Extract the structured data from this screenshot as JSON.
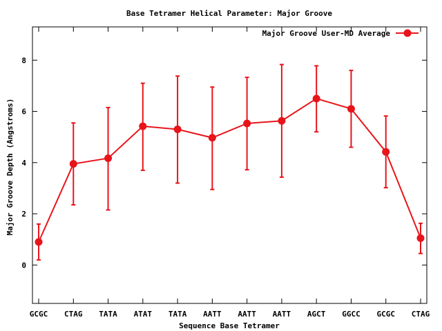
{
  "chart_data": {
    "type": "line",
    "title": "Base Tetramer Helical Parameter: Major Groove",
    "xlabel": "Sequence Base Tetramer",
    "ylabel": "Major Groove Depth (Angstroms)",
    "categories": [
      "GCGC",
      "CTAG",
      "TATA",
      "ATAT",
      "TATA",
      "AATT",
      "AATT",
      "AATT",
      "AGCT",
      "GGCC",
      "GCGC",
      "CTAG"
    ],
    "ylim": [
      -1.5,
      9.3
    ],
    "yticks": [
      0,
      2,
      4,
      6,
      8
    ],
    "grid": false,
    "legend_position": "top-right",
    "series": [
      {
        "name": "Major Groove User-MD Average",
        "color": "#e8141a",
        "marker": "circle",
        "values": [
          0.9,
          3.95,
          4.17,
          5.42,
          5.3,
          4.97,
          5.53,
          5.63,
          6.5,
          6.1,
          4.42,
          1.05
        ],
        "err_low": [
          0.2,
          2.35,
          2.15,
          3.7,
          3.2,
          2.95,
          3.72,
          3.43,
          5.2,
          4.6,
          3.02,
          0.45
        ],
        "err_high": [
          1.6,
          5.55,
          6.15,
          7.1,
          7.38,
          6.95,
          7.33,
          7.83,
          7.78,
          7.6,
          5.82,
          1.63
        ]
      }
    ]
  }
}
